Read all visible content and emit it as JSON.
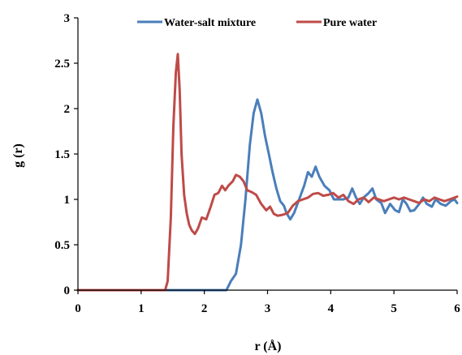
{
  "chart_data": {
    "type": "line",
    "xlabel": "r (Å)",
    "ylabel": "g (r)",
    "xlim": [
      0,
      6
    ],
    "ylim": [
      0,
      3
    ],
    "xticks": [
      "0",
      "1",
      "2",
      "3",
      "4",
      "5",
      "6"
    ],
    "yticks": [
      "0",
      "0.5",
      "1",
      "1.5",
      "2",
      "2.5",
      "3"
    ],
    "grid": false,
    "legend_position": "top",
    "series": [
      {
        "name": "Water-salt mixture",
        "color": "#4a7ebb",
        "points": [
          [
            0,
            0
          ],
          [
            2.0,
            0
          ],
          [
            2.35,
            0
          ],
          [
            2.42,
            0.1
          ],
          [
            2.5,
            0.18
          ],
          [
            2.58,
            0.5
          ],
          [
            2.65,
            1.0
          ],
          [
            2.72,
            1.6
          ],
          [
            2.78,
            1.95
          ],
          [
            2.84,
            2.1
          ],
          [
            2.9,
            1.95
          ],
          [
            2.96,
            1.7
          ],
          [
            3.02,
            1.5
          ],
          [
            3.08,
            1.3
          ],
          [
            3.14,
            1.12
          ],
          [
            3.2,
            0.98
          ],
          [
            3.26,
            0.93
          ],
          [
            3.3,
            0.85
          ],
          [
            3.36,
            0.78
          ],
          [
            3.42,
            0.85
          ],
          [
            3.5,
            1.0
          ],
          [
            3.58,
            1.15
          ],
          [
            3.64,
            1.3
          ],
          [
            3.7,
            1.25
          ],
          [
            3.76,
            1.36
          ],
          [
            3.82,
            1.25
          ],
          [
            3.9,
            1.15
          ],
          [
            3.98,
            1.1
          ],
          [
            4.05,
            1.0
          ],
          [
            4.12,
            1.0
          ],
          [
            4.2,
            1.0
          ],
          [
            4.28,
            1.02
          ],
          [
            4.34,
            1.12
          ],
          [
            4.4,
            1.02
          ],
          [
            4.46,
            0.95
          ],
          [
            4.52,
            1.02
          ],
          [
            4.6,
            1.07
          ],
          [
            4.66,
            1.12
          ],
          [
            4.72,
            1.0
          ],
          [
            4.8,
            0.96
          ],
          [
            4.86,
            0.85
          ],
          [
            4.94,
            0.95
          ],
          [
            5.02,
            0.88
          ],
          [
            5.08,
            0.86
          ],
          [
            5.14,
            1.0
          ],
          [
            5.2,
            0.95
          ],
          [
            5.26,
            0.87
          ],
          [
            5.32,
            0.88
          ],
          [
            5.4,
            0.95
          ],
          [
            5.46,
            1.02
          ],
          [
            5.52,
            0.95
          ],
          [
            5.6,
            0.92
          ],
          [
            5.66,
            1.0
          ],
          [
            5.74,
            0.95
          ],
          [
            5.82,
            0.93
          ],
          [
            5.9,
            0.98
          ],
          [
            5.96,
            1.0
          ],
          [
            6.0,
            0.96
          ]
        ]
      },
      {
        "name": "Pure water",
        "color": "#be4b48",
        "points": [
          [
            0,
            0
          ],
          [
            1.0,
            0
          ],
          [
            1.38,
            0
          ],
          [
            1.42,
            0.1
          ],
          [
            1.47,
            0.8
          ],
          [
            1.51,
            1.8
          ],
          [
            1.55,
            2.4
          ],
          [
            1.58,
            2.6
          ],
          [
            1.61,
            2.2
          ],
          [
            1.64,
            1.5
          ],
          [
            1.68,
            1.05
          ],
          [
            1.72,
            0.85
          ],
          [
            1.76,
            0.72
          ],
          [
            1.8,
            0.66
          ],
          [
            1.85,
            0.62
          ],
          [
            1.9,
            0.68
          ],
          [
            1.96,
            0.8
          ],
          [
            2.03,
            0.78
          ],
          [
            2.1,
            0.92
          ],
          [
            2.16,
            1.05
          ],
          [
            2.22,
            1.07
          ],
          [
            2.28,
            1.15
          ],
          [
            2.33,
            1.1
          ],
          [
            2.38,
            1.15
          ],
          [
            2.45,
            1.2
          ],
          [
            2.5,
            1.27
          ],
          [
            2.56,
            1.25
          ],
          [
            2.62,
            1.2
          ],
          [
            2.68,
            1.1
          ],
          [
            2.75,
            1.08
          ],
          [
            2.82,
            1.05
          ],
          [
            2.9,
            0.95
          ],
          [
            2.98,
            0.88
          ],
          [
            3.04,
            0.92
          ],
          [
            3.1,
            0.84
          ],
          [
            3.16,
            0.82
          ],
          [
            3.24,
            0.83
          ],
          [
            3.32,
            0.85
          ],
          [
            3.4,
            0.93
          ],
          [
            3.48,
            0.98
          ],
          [
            3.56,
            1.0
          ],
          [
            3.64,
            1.02
          ],
          [
            3.72,
            1.06
          ],
          [
            3.8,
            1.07
          ],
          [
            3.88,
            1.04
          ],
          [
            3.96,
            1.05
          ],
          [
            4.04,
            1.07
          ],
          [
            4.12,
            1.02
          ],
          [
            4.2,
            1.05
          ],
          [
            4.28,
            0.98
          ],
          [
            4.36,
            0.95
          ],
          [
            4.44,
            1.0
          ],
          [
            4.52,
            1.02
          ],
          [
            4.6,
            0.97
          ],
          [
            4.68,
            1.02
          ],
          [
            4.76,
            1.0
          ],
          [
            4.84,
            0.98
          ],
          [
            4.92,
            1.0
          ],
          [
            5.0,
            1.02
          ],
          [
            5.08,
            1.0
          ],
          [
            5.16,
            1.02
          ],
          [
            5.24,
            1.0
          ],
          [
            5.32,
            0.98
          ],
          [
            5.4,
            0.96
          ],
          [
            5.48,
            1.0
          ],
          [
            5.56,
            0.98
          ],
          [
            5.64,
            1.02
          ],
          [
            5.72,
            1.0
          ],
          [
            5.8,
            0.98
          ],
          [
            5.88,
            1.0
          ],
          [
            5.96,
            1.02
          ],
          [
            6.0,
            1.03
          ]
        ]
      }
    ]
  }
}
